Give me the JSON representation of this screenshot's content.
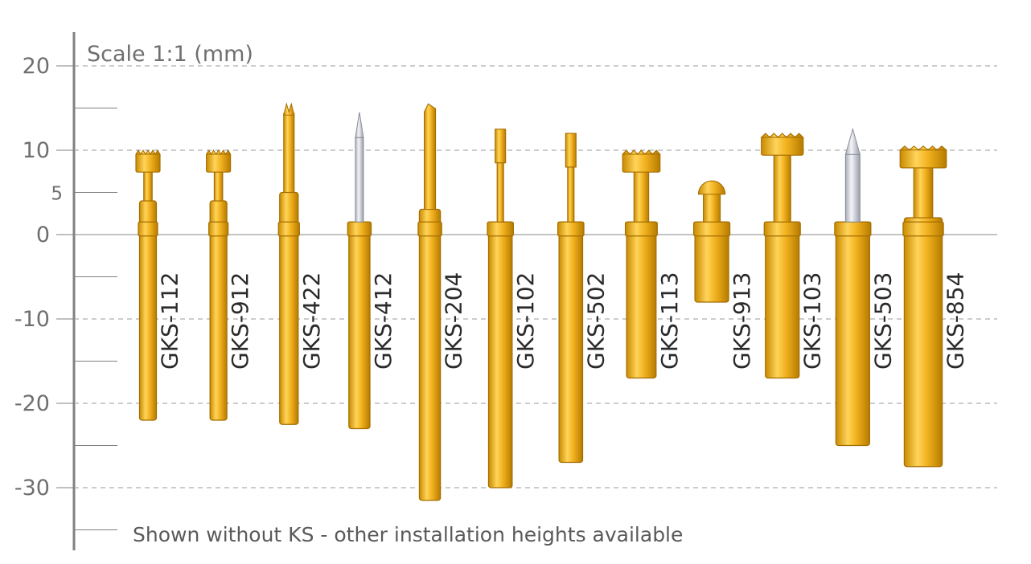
{
  "title": "Scale 1:1 (mm)",
  "caption": "Shown without KS - other installation heights available",
  "colors": {
    "brass": "#f2b21f",
    "brass_dark": "#a46d00",
    "silver": "#dcdfea",
    "silver_dark": "#8a8d98",
    "axis": "#808080",
    "grid": "#999999"
  },
  "axis": {
    "range_mm": [
      -35,
      25
    ],
    "major_ticks": [
      {
        "value": 20,
        "label": "20"
      },
      {
        "value": 10,
        "label": "10"
      },
      {
        "value": 5,
        "label": "5"
      },
      {
        "value": 0,
        "label": "0"
      },
      {
        "value": -10,
        "label": "-10"
      },
      {
        "value": -20,
        "label": "-20"
      },
      {
        "value": -30,
        "label": "-30"
      }
    ],
    "minor_ticks": [
      15,
      -5,
      -15,
      -25,
      -35
    ],
    "dashed_lines": [
      20,
      10,
      -10,
      -20,
      -30
    ],
    "solid_line": 0
  },
  "probes": [
    {
      "label": "GKS-112",
      "top": 10,
      "bottom": -22,
      "body_w": 2.0,
      "tip": "crown",
      "tip_material": "brass",
      "plunger_top": 4.0
    },
    {
      "label": "GKS-912",
      "top": 10,
      "bottom": -22,
      "body_w": 2.0,
      "tip": "crown",
      "tip_material": "brass",
      "plunger_top": 4.0
    },
    {
      "label": "GKS-422",
      "top": 15.5,
      "bottom": -22.5,
      "body_w": 2.2,
      "tip": "fork",
      "tip_material": "brass",
      "plunger_top": 5.0
    },
    {
      "label": "GKS-412",
      "top": 14.5,
      "bottom": -23,
      "body_w": 2.5,
      "tip": "needle",
      "tip_material": "silver",
      "plunger_top": 1.5
    },
    {
      "label": "GKS-204",
      "top": 15.5,
      "bottom": -31.5,
      "body_w": 2.5,
      "tip": "chisel",
      "tip_material": "brass",
      "plunger_top": 3.0
    },
    {
      "label": "GKS-102",
      "top": 12.5,
      "bottom": -30,
      "body_w": 2.8,
      "tip": "rod",
      "tip_material": "brass",
      "plunger_top": 1.5
    },
    {
      "label": "GKS-502",
      "top": 12,
      "bottom": -27,
      "body_w": 2.8,
      "tip": "rod",
      "tip_material": "brass",
      "plunger_top": 1.5
    },
    {
      "label": "GKS-113",
      "top": 10,
      "bottom": -17,
      "body_w": 3.5,
      "tip": "crown",
      "tip_material": "brass",
      "plunger_top": 1.5
    },
    {
      "label": "GKS-913",
      "top": 7,
      "bottom": -8,
      "body_w": 4.0,
      "tip": "ball",
      "tip_material": "brass",
      "plunger_top": 1.5
    },
    {
      "label": "GKS-103",
      "top": 12,
      "bottom": -17,
      "body_w": 4.0,
      "tip": "crown",
      "tip_material": "brass",
      "plunger_top": 1.5
    },
    {
      "label": "GKS-503",
      "top": 12.5,
      "bottom": -25,
      "body_w": 4.0,
      "tip": "needle",
      "tip_material": "silver",
      "plunger_top": 1.5
    },
    {
      "label": "GKS-854",
      "top": 10.5,
      "bottom": -27.5,
      "body_w": 4.5,
      "tip": "crown",
      "tip_material": "brass",
      "plunger_top": 2.0
    }
  ]
}
